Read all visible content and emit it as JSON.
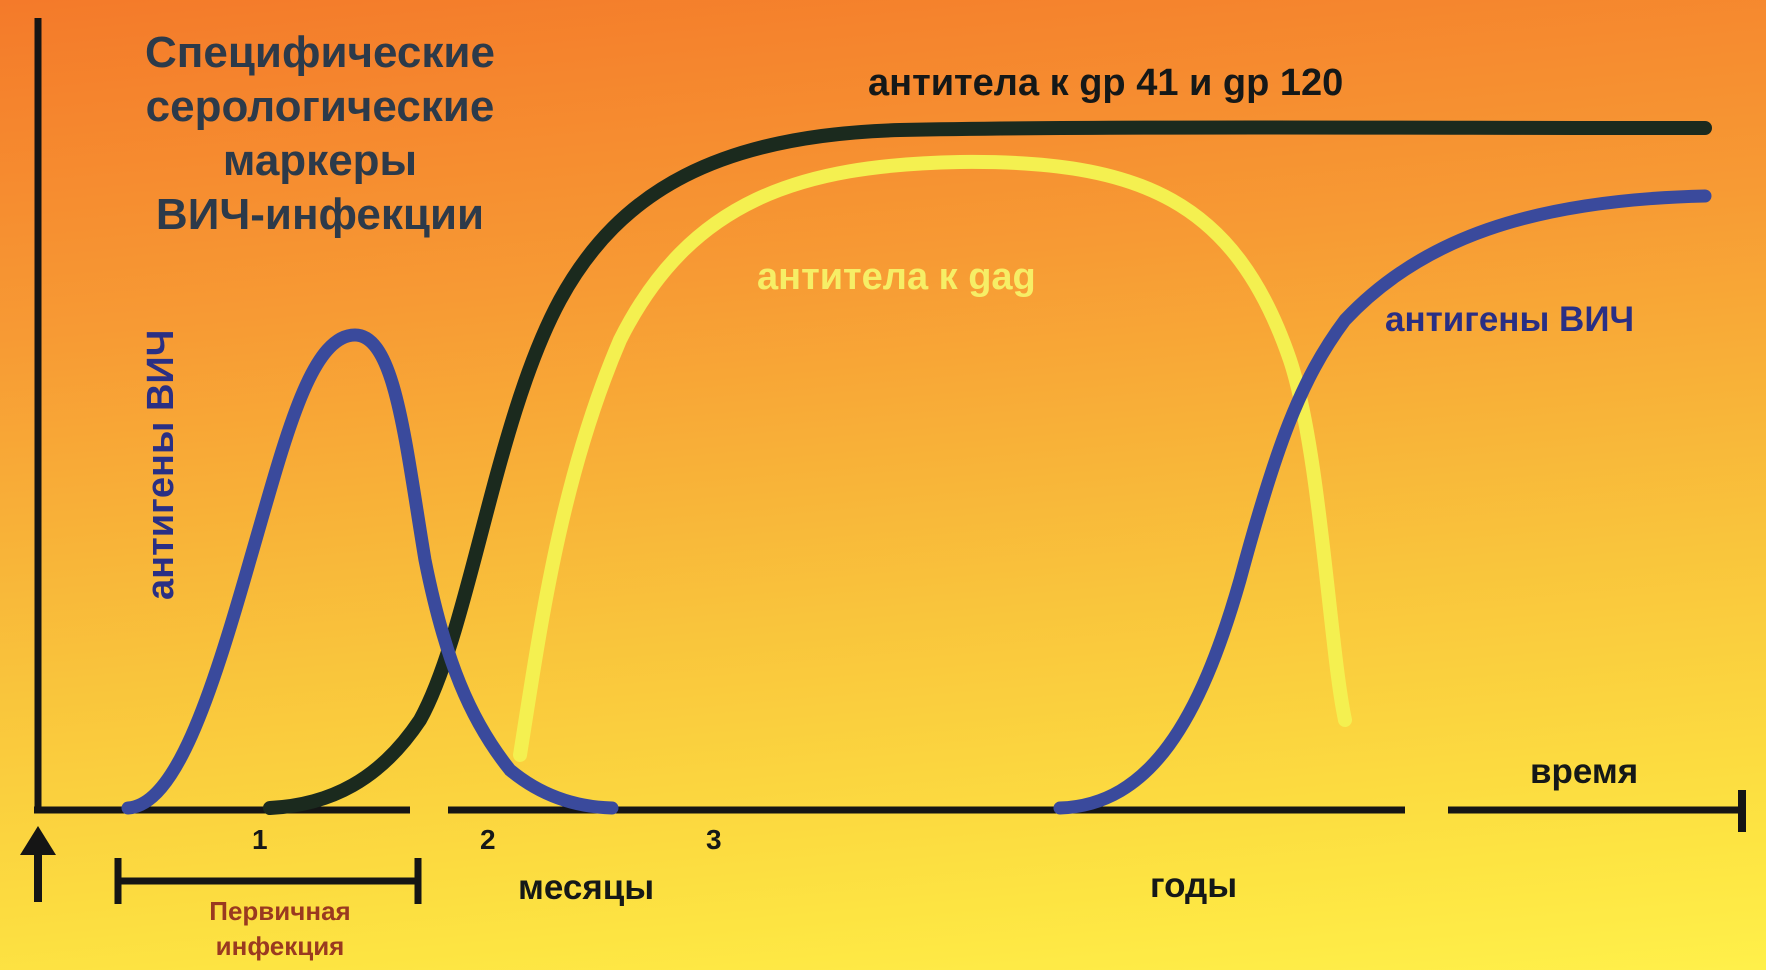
{
  "title": [
    "Специфические",
    "серологические",
    "маркеры",
    "ВИЧ-инфекции"
  ],
  "curves": {
    "gp_label": "антитела к gp 41 и gp 120",
    "gag_label": "антитела к gag",
    "antigen_label": "антигены ВИЧ"
  },
  "axis": {
    "time_label": "время",
    "ticks": [
      "1",
      "2",
      "3"
    ],
    "months_label": "месяцы",
    "years_label": "годы"
  },
  "primary_infection": [
    "Первичная",
    "инфекция"
  ],
  "colors": {
    "gp_curve": "#1b2a1e",
    "gag_curve": "#f4f050",
    "antigen_curve": "#3a4a9c",
    "axis": "#151515",
    "background_top": "#f47a2a",
    "background_bottom": "#fff04a"
  }
}
